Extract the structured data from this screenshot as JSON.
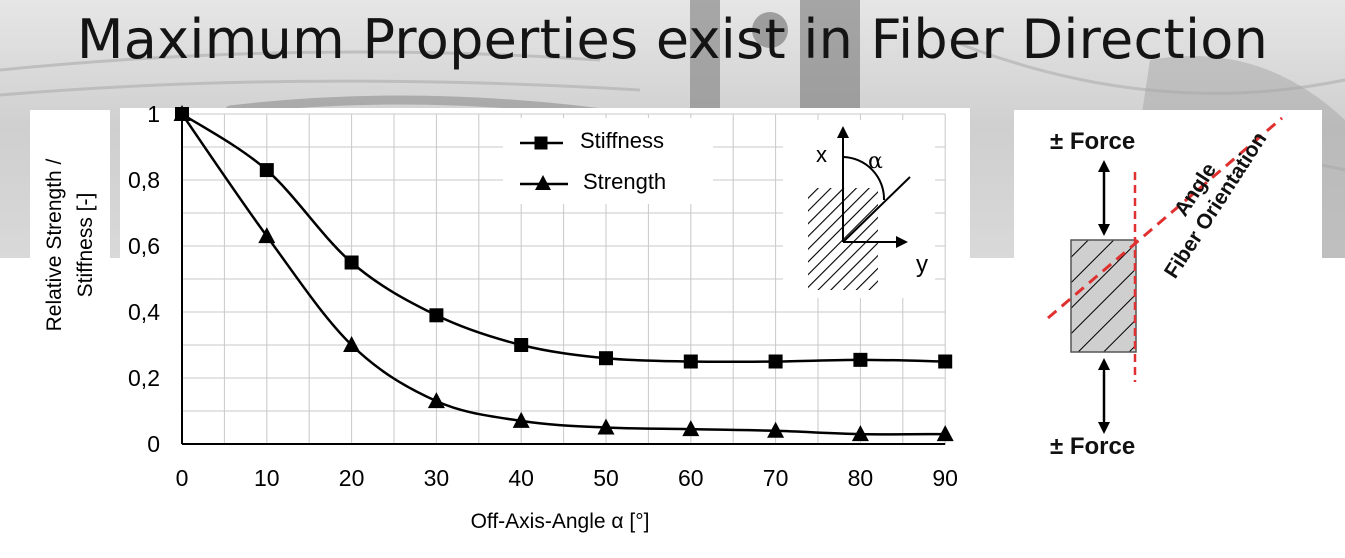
{
  "slide": {
    "title": "Maximum Properties exist in Fiber Direction"
  },
  "chart_data": {
    "type": "line",
    "xlabel": "Off-Axis-Angle α [°]",
    "ylabel_lines": [
      "Relative Strength /",
      "Stiffness [-]"
    ],
    "x": [
      0,
      10,
      20,
      30,
      40,
      50,
      60,
      70,
      80,
      90
    ],
    "xticks": [
      "0",
      "10",
      "20",
      "30",
      "40",
      "50",
      "60",
      "70",
      "80",
      "90"
    ],
    "yticks": [
      "0",
      "0,2",
      "0,4",
      "0,6",
      "0,8",
      "1"
    ],
    "ylim": [
      0,
      1
    ],
    "xlim": [
      0,
      90
    ],
    "grid": true,
    "legend_position": "top-center",
    "series": [
      {
        "name": "Stiffness",
        "marker": "square",
        "values": [
          1.0,
          0.83,
          0.55,
          0.39,
          0.3,
          0.26,
          0.25,
          0.25,
          0.255,
          0.25
        ]
      },
      {
        "name": "Strength",
        "marker": "triangle",
        "values": [
          1.0,
          0.63,
          0.3,
          0.13,
          0.07,
          0.05,
          0.045,
          0.04,
          0.03,
          0.03
        ]
      }
    ],
    "inset": {
      "x_axis": "x",
      "y_axis": "y",
      "angle": "α"
    }
  },
  "diagram": {
    "force_top": "± Force",
    "force_bottom": "± Force",
    "angle_label": "Angle",
    "fiber_label": "Fiber Orientation",
    "dash_color": "#e03131"
  }
}
